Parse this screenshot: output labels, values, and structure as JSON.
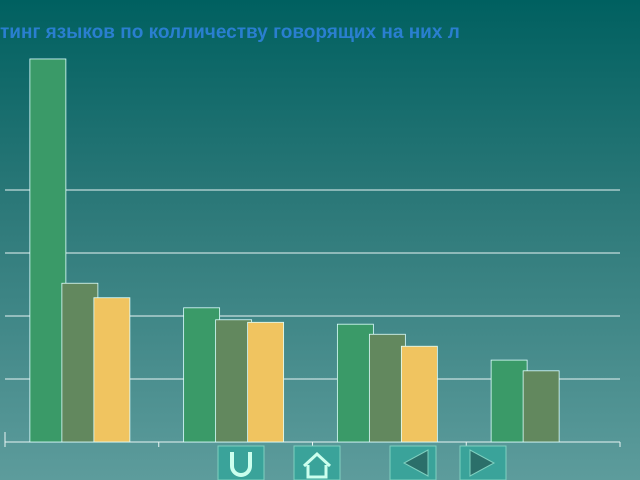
{
  "chart_data": {
    "type": "bar",
    "title": "тинг языков по колличеству говорящих на них л",
    "categories": [
      null,
      null,
      null,
      null
    ],
    "series": [
      {
        "color": "#3a9a68",
        "values": [
          6.08,
          2.13,
          1.87,
          1.3
        ]
      },
      {
        "color": "#62885e",
        "values": [
          2.52,
          1.94,
          1.71,
          1.13
        ]
      },
      {
        "color": "#f0c460",
        "values": [
          2.29,
          1.9,
          1.52,
          null
        ]
      }
    ],
    "ylim": [
      0,
      6.5
    ],
    "yticks": [
      0,
      1,
      2,
      3,
      4
    ],
    "grid": true
  }
}
